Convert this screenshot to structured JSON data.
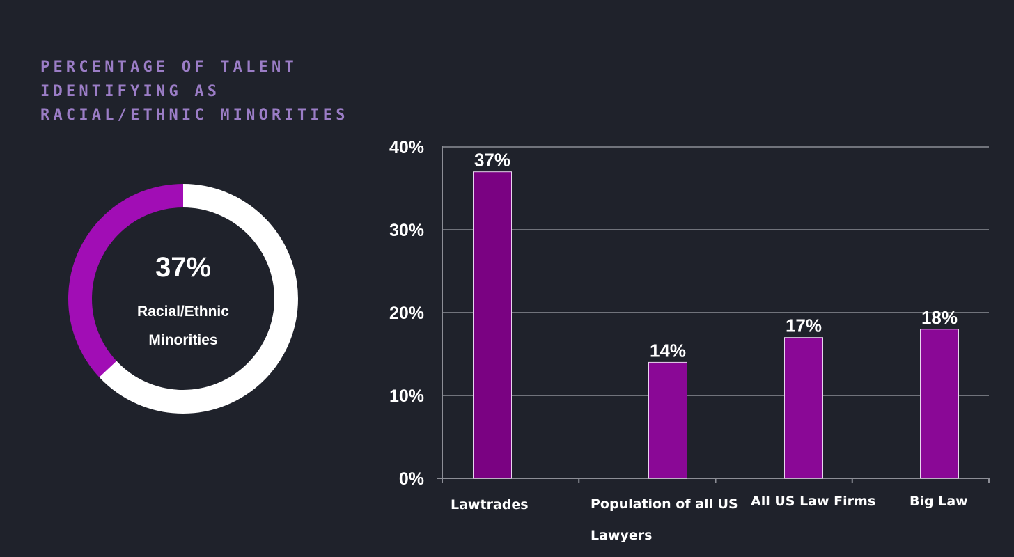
{
  "headline": {
    "lines": [
      "PERCENTAGE OF TALENT",
      "IDENTIFYING AS",
      "RACIAL/ETHNIC MINORITIES"
    ]
  },
  "colors": {
    "background": "#1f222b",
    "headline": "#9b7dc6",
    "donut_fill": "#a10db5",
    "donut_rest": "#ffffff",
    "bar_primary": "#7a0282",
    "bar_secondary": "#8a0896",
    "gridline": "#8c8e96",
    "text": "#ffffff"
  },
  "chart_data": [
    {
      "type": "pie",
      "variant": "donut",
      "slices": [
        {
          "label": "Racial/Ethnic Minorities",
          "value": 37
        },
        {
          "label": "",
          "value": 63
        }
      ],
      "center_value": "37%",
      "center_label_lines": [
        "Racial/Ethnic",
        "Minorities"
      ]
    },
    {
      "type": "bar",
      "categories": [
        [
          "Lawtrades"
        ],
        [
          "Population of all US",
          "Lawyers"
        ],
        [
          "All US Law Firms"
        ],
        [
          "Big Law"
        ]
      ],
      "values": [
        37,
        14,
        17,
        18
      ],
      "data_labels": [
        "37%",
        "14%",
        "17%",
        "18%"
      ],
      "yticks": [
        "0%",
        "10%",
        "20%",
        "30%",
        "40%"
      ],
      "ylim": [
        0,
        40
      ],
      "grid": true,
      "legend": "none"
    }
  ]
}
